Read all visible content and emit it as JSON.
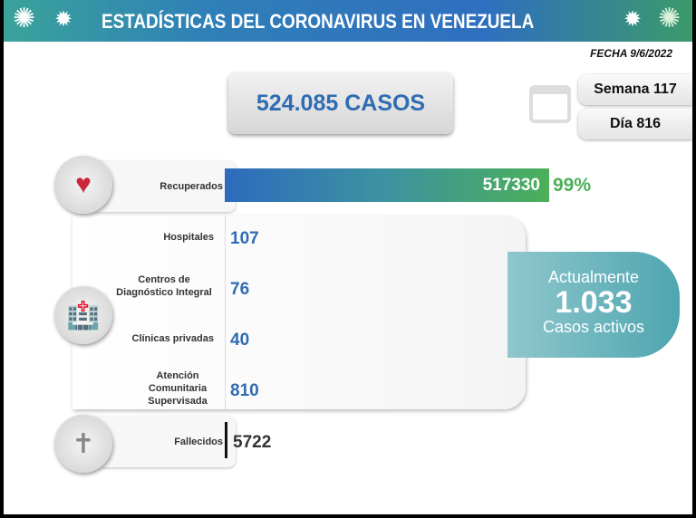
{
  "header": {
    "title": "ESTADÍSTICAS DEL CORONAVIRUS EN VENEZUELA",
    "date": "FECHA 9/6/2022"
  },
  "summary": {
    "total_cases": "524.085 CASOS",
    "week": "Semana 117",
    "day": "Día 816"
  },
  "recovered": {
    "label": "Recuperados",
    "value": "517330",
    "percent": "99%"
  },
  "care": [
    {
      "label": "Hospitales",
      "value": "107"
    },
    {
      "label": "Centros de Diagnóstico Integral",
      "value": "76"
    },
    {
      "label": "Clínicas privadas",
      "value": "40"
    },
    {
      "label": "Atención Comunitaria Supervisada",
      "value": "810"
    }
  ],
  "active": {
    "line1": "Actualmente",
    "value": "1.033",
    "line2": "Casos activos"
  },
  "deaths": {
    "label": "Fallecidos",
    "value": "5722"
  },
  "icons": [
    "virus-icon",
    "calendar-icon",
    "heart-pulse-icon",
    "hospital-icon",
    "tombstone-icon"
  ],
  "colors": {
    "blue": "#2f6cb3",
    "green": "#4caf58",
    "teal": "#4ea5b0"
  }
}
